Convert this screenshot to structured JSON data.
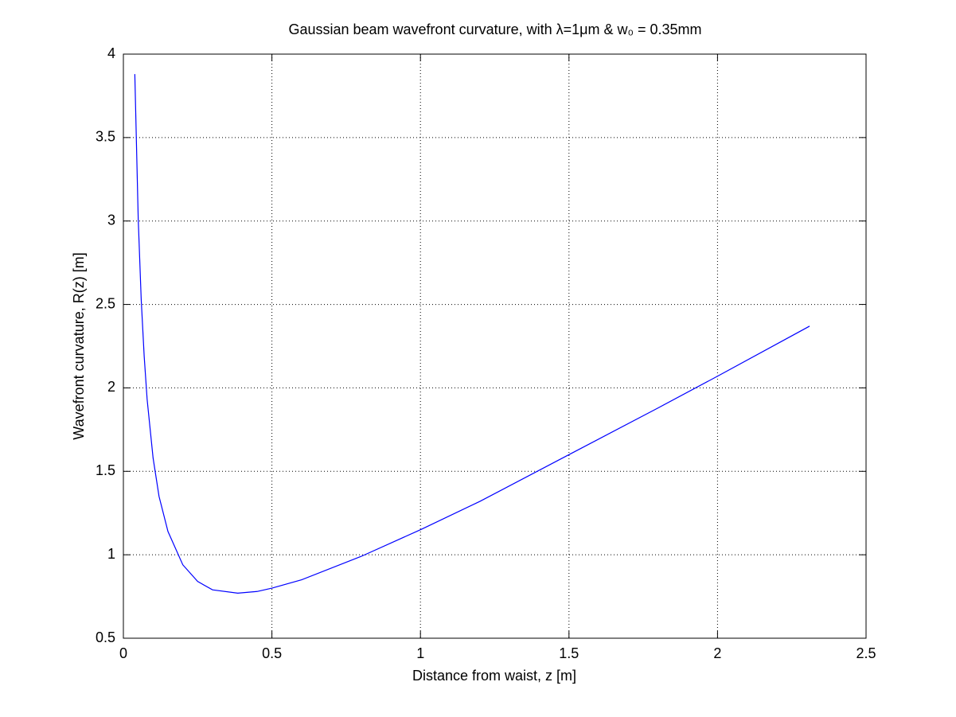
{
  "chart_data": {
    "type": "line",
    "title": "Gaussian beam wavefront curvature, with λ=1μm & w₀ = 0.35mm",
    "x_label": "Distance from waist, z [m]",
    "y_label": "Wavefront curvature, R(z) [m]",
    "x": [
      0.0385,
      0.05,
      0.06,
      0.07,
      0.08,
      0.1,
      0.12,
      0.15,
      0.2,
      0.25,
      0.3,
      0.385,
      0.45,
      0.5,
      0.6,
      0.8,
      1.0,
      1.2,
      1.5,
      1.8,
      2.0,
      2.31
    ],
    "series": [
      {
        "color": "#0000ff",
        "values": [
          3.88,
          3.01,
          2.53,
          2.19,
          1.93,
          1.58,
          1.35,
          1.14,
          0.94,
          0.84,
          0.79,
          0.77,
          0.78,
          0.8,
          0.85,
          0.99,
          1.15,
          1.32,
          1.6,
          1.88,
          2.07,
          2.37
        ]
      }
    ],
    "xlim": [
      0,
      2.5
    ],
    "xticks": [
      0,
      0.5,
      1,
      1.5,
      2,
      2.5
    ],
    "ylim": [
      0.5,
      4
    ],
    "yticks": [
      0.5,
      1,
      1.5,
      2,
      2.5,
      3,
      3.5,
      4
    ],
    "grid": true
  }
}
